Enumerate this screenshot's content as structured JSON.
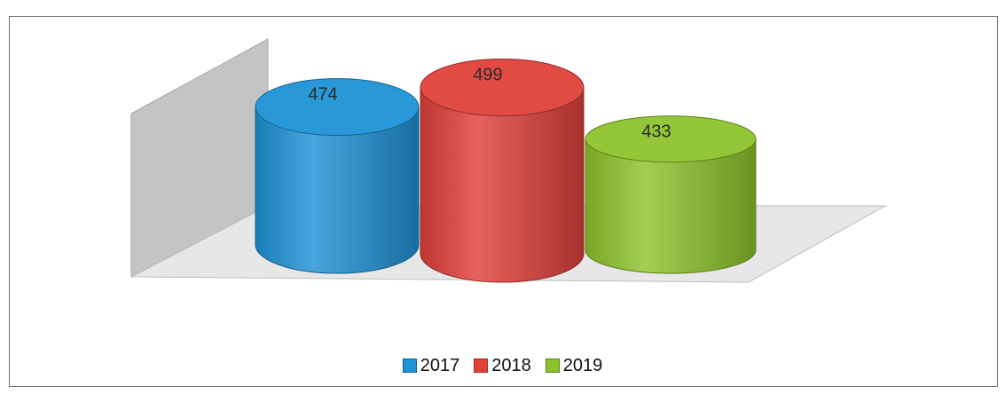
{
  "chart_data": {
    "type": "bar",
    "style": "3d-cylinder",
    "categories": [
      "2017",
      "2018",
      "2019"
    ],
    "values": [
      474,
      499,
      433
    ],
    "colors": [
      "#1e93d6",
      "#e0403a",
      "#8dc42c"
    ],
    "title": "",
    "xlabel": "",
    "ylabel": "",
    "grid": false,
    "legend_position": "bottom",
    "data_labels": [
      "474",
      "499",
      "433"
    ]
  },
  "legend": [
    {
      "label": "2017",
      "color": "#1e93d6"
    },
    {
      "label": "2018",
      "color": "#e0403a"
    },
    {
      "label": "2019",
      "color": "#8dc42c"
    }
  ]
}
